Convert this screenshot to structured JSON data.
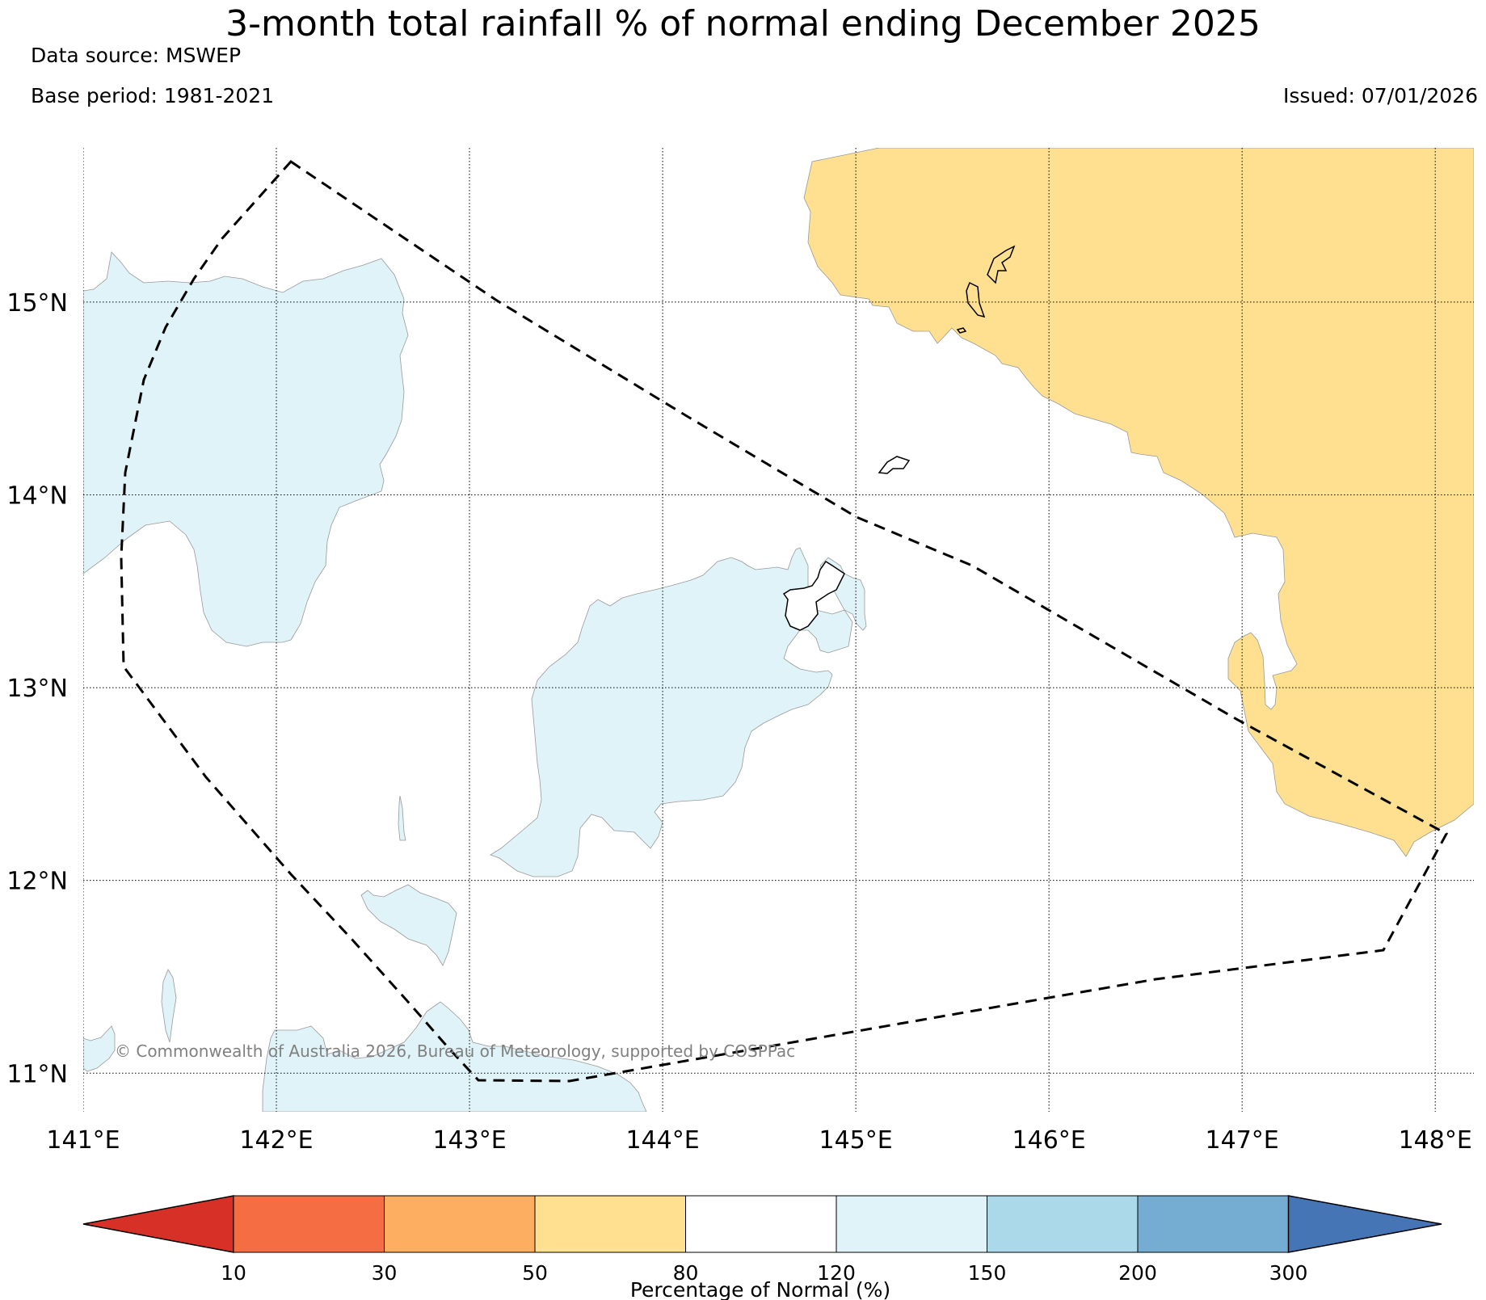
{
  "title": "3-month total rainfall % of normal ending December 2025",
  "data_source": "Data source: MSWEP",
  "base_period": "Base period: 1981-2021",
  "issued": "Issued: 07/01/2026",
  "copyright": "© Commonwealth of Australia 2026, Bureau of Meteorology, supported by COSPPac",
  "map": {
    "lon_ticks": [
      "141°E",
      "142°E",
      "143°E",
      "144°E",
      "145°E",
      "146°E",
      "147°E",
      "148°E"
    ],
    "lat_ticks": [
      "11°N",
      "12°N",
      "13°N",
      "14°N",
      "15°N"
    ],
    "lon_values": [
      141,
      142,
      143,
      144,
      145,
      146,
      147,
      148
    ],
    "lat_values": [
      11,
      12,
      13,
      14,
      15
    ],
    "lon_range": [
      141.0,
      148.2
    ],
    "lat_range": [
      10.8,
      15.8
    ]
  },
  "legend": {
    "title": "Percentage of Normal (%)",
    "tick_labels": [
      "10",
      "30",
      "50",
      "80",
      "120",
      "150",
      "200",
      "300"
    ],
    "colors": [
      "#d73027",
      "#f46d43",
      "#fdae61",
      "#fee090",
      "#ffffff",
      "#e0f3f8",
      "#abd9e9",
      "#74add1",
      "#4575b4"
    ]
  },
  "colors": {
    "below_normal_fill": "#fee090",
    "above_normal_fill": "#e0f3f8",
    "boundary_line": "#000000",
    "copyright_text": "#808080"
  }
}
